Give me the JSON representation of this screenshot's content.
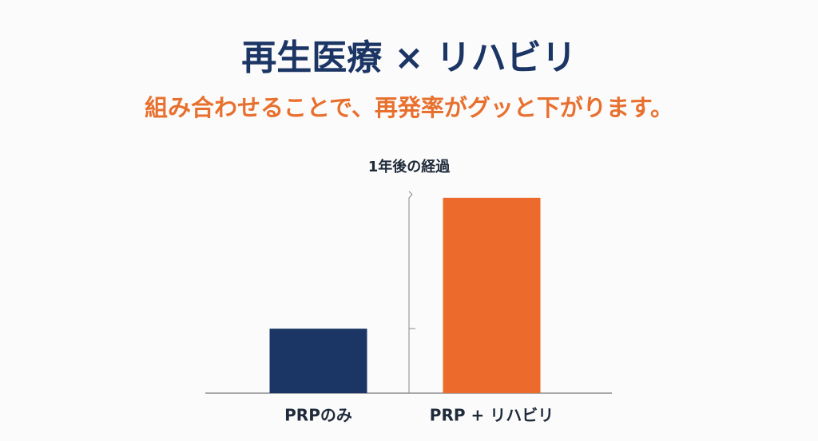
{
  "chart_data": {
    "type": "bar",
    "title": "再生医療 × リハビリ",
    "subtitle": "組み合わせることで、再発率がグッと下がります。",
    "y_label": "1年後の経過",
    "categories": [
      "PRPのみ",
      "PRP + リハビリ"
    ],
    "values": [
      33,
      100
    ],
    "colors": [
      "#1b3564",
      "#ec6b2c"
    ],
    "ylim": [
      0,
      100
    ]
  }
}
